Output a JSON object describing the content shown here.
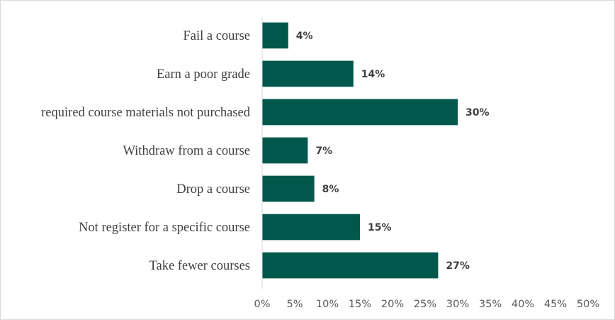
{
  "chart_data": {
    "type": "bar",
    "orientation": "horizontal",
    "categories": [
      "Fail a course",
      "Earn a poor grade",
      "required course materials not purchased",
      "Withdraw from a course",
      "Drop a course",
      "Not register for a specific course",
      "Take fewer courses"
    ],
    "values": [
      4,
      14,
      30,
      7,
      8,
      15,
      27
    ],
    "data_labels": [
      "4%",
      "14%",
      "30%",
      "7%",
      "8%",
      "15%",
      "27%"
    ],
    "x_ticks": [
      "0%",
      "5%",
      "10%",
      "15%",
      "20%",
      "25%",
      "30%",
      "35%",
      "40%",
      "45%",
      "50%"
    ],
    "xlim": [
      0,
      50
    ],
    "grid": false,
    "legend": "none",
    "title": "",
    "xlabel": "",
    "ylabel": "",
    "bar_color": "#00574B",
    "axis_color": "#D9D9D9"
  }
}
